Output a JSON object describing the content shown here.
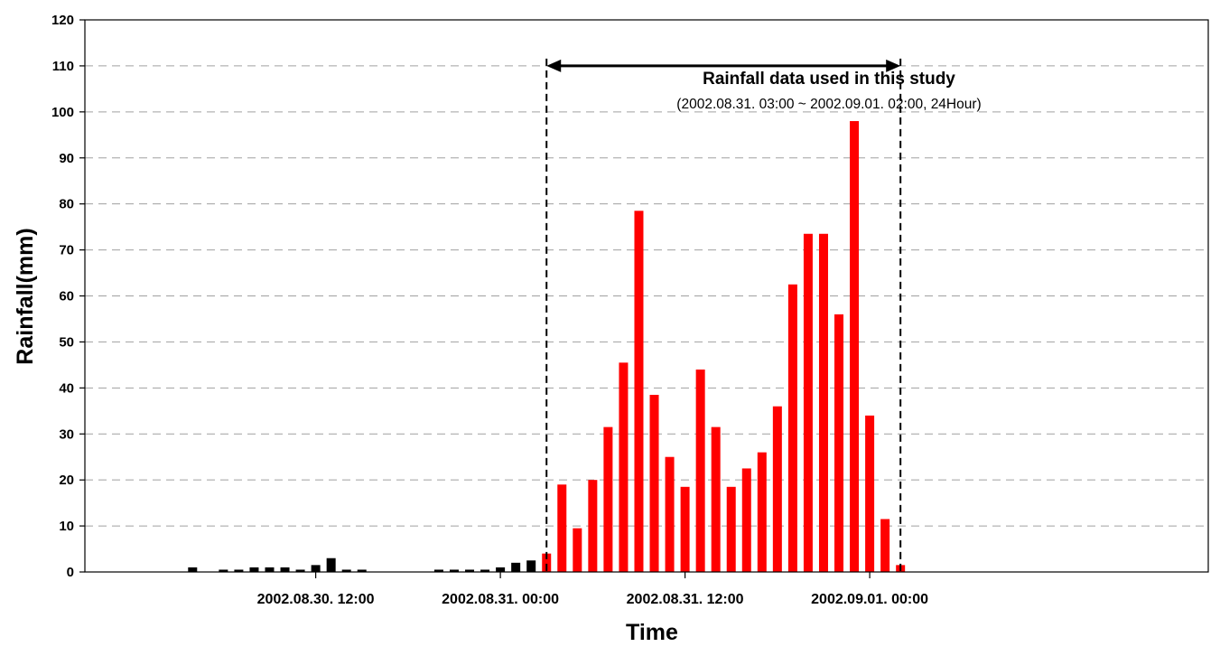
{
  "chart_data": {
    "type": "bar",
    "xlabel": "Time",
    "ylabel": "Rainfall(mm)",
    "ylim": [
      0,
      120
    ],
    "yticks": [
      "0",
      "10",
      "20",
      "30",
      "40",
      "50",
      "60",
      "70",
      "80",
      "90",
      "100",
      "110",
      "120"
    ],
    "grid": "horizontal dashed",
    "x_tick_labels": [
      {
        "label": "2002.08.30. 12:00",
        "hour": 12
      },
      {
        "label": "2002.08.31. 00:00",
        "hour": 24
      },
      {
        "label": "2002.08.31. 12:00",
        "hour": 36
      },
      {
        "label": "2002.09.01. 00:00",
        "hour": 48
      }
    ],
    "x_range_hours_from_2002_08_30_00_00": [
      -3,
      70
    ],
    "annotation": {
      "title": "Rainfall data used in this study",
      "subtitle": "(2002.08.31. 03:00 ~ 2002.09.01. 02:00, 24Hour)",
      "start_hour": 27,
      "end_hour": 50
    },
    "series": [
      {
        "color": "#000000",
        "hours": [
          4,
          6,
          7,
          8,
          9,
          10,
          11,
          12,
          13,
          14,
          15,
          16,
          20,
          21,
          22,
          23,
          24,
          25,
          26
        ],
        "values": [
          1.0,
          0.5,
          0.5,
          1.0,
          1.0,
          1.0,
          0.5,
          1.5,
          3.0,
          0.5,
          0.5,
          0.0,
          0.5,
          0.5,
          0.5,
          0.5,
          1.0,
          2.0,
          2.5
        ]
      },
      {
        "color": "#ff0000",
        "hours": [
          27,
          28,
          29,
          30,
          31,
          32,
          33,
          34,
          35,
          36,
          37,
          38,
          39,
          40,
          41,
          42,
          43,
          44,
          45,
          46,
          47,
          48,
          49,
          50
        ],
        "values": [
          4.0,
          19.0,
          9.5,
          20.0,
          31.5,
          45.5,
          78.5,
          38.5,
          25.0,
          18.5,
          44.0,
          31.5,
          18.5,
          22.5,
          26.0,
          36.0,
          62.5,
          73.5,
          73.5,
          56.0,
          98.0,
          34.0,
          11.5,
          1.5
        ]
      }
    ]
  }
}
